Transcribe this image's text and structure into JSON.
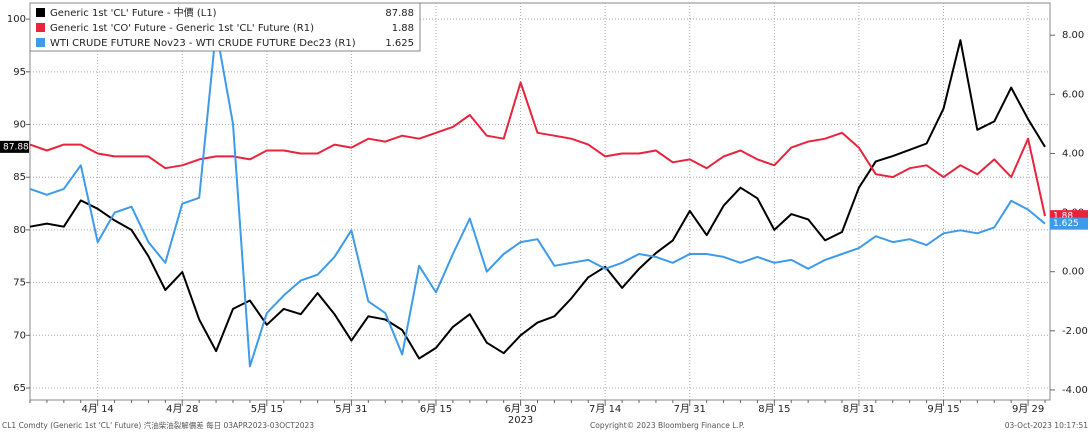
{
  "chart_data": {
    "type": "line",
    "categories": [
      null,
      null,
      null,
      null,
      "4月 14",
      null,
      null,
      null,
      null,
      "4月 28",
      null,
      null,
      null,
      null,
      "5月 15",
      null,
      null,
      null,
      null,
      "5月 31",
      null,
      null,
      null,
      null,
      "6月 15",
      null,
      null,
      null,
      null,
      "6月 30",
      null,
      null,
      null,
      null,
      "7月 14",
      null,
      null,
      null,
      null,
      "7月 31",
      null,
      null,
      null,
      null,
      "8月 15",
      null,
      null,
      null,
      null,
      "8月 31",
      null,
      null,
      null,
      null,
      "9月 15",
      null,
      null,
      null,
      null,
      "9月 29",
      null
    ],
    "x_year": "2023",
    "series": [
      {
        "name": "Generic 1st 'CL' Future - 中價 (L1)",
        "color": "#000000",
        "axis": "y",
        "last_value": 87.88,
        "values": [
          80.3,
          80.6,
          80.3,
          82.8,
          82.0,
          80.9,
          80.0,
          77.5,
          74.3,
          76.0,
          71.5,
          68.5,
          72.5,
          73.3,
          71.0,
          72.5,
          72.0,
          74.0,
          72.0,
          69.5,
          71.8,
          71.5,
          70.5,
          67.8,
          68.8,
          70.8,
          72.0,
          69.3,
          68.3,
          70.0,
          71.2,
          71.8,
          73.5,
          75.5,
          76.5,
          74.5,
          76.3,
          77.8,
          79.0,
          81.8,
          79.5,
          82.3,
          84.0,
          83.0,
          80.0,
          81.5,
          81.0,
          79.0,
          79.8,
          84.0,
          86.5,
          87.0,
          87.6,
          88.2,
          91.5,
          98.0,
          89.5,
          90.3,
          93.5,
          90.5,
          87.88
        ]
      },
      {
        "name": "Generic 1st 'CO' Future - Generic 1st 'CL' Future (R1)",
        "color": "#e8243c",
        "axis": "y2",
        "last_value": 1.88,
        "values": [
          4.3,
          4.1,
          4.3,
          4.3,
          4.0,
          3.9,
          3.9,
          3.9,
          3.5,
          3.6,
          3.8,
          3.9,
          3.9,
          3.8,
          4.1,
          4.1,
          4.0,
          4.0,
          4.3,
          4.2,
          4.5,
          4.4,
          4.6,
          4.5,
          4.7,
          4.9,
          5.3,
          4.6,
          4.5,
          6.4,
          4.7,
          4.6,
          4.5,
          4.3,
          3.9,
          4.0,
          4.0,
          4.1,
          3.7,
          3.8,
          3.5,
          3.9,
          4.1,
          3.8,
          3.6,
          4.2,
          4.4,
          4.5,
          4.7,
          4.2,
          3.3,
          3.2,
          3.5,
          3.6,
          3.2,
          3.6,
          3.3,
          3.8,
          3.2,
          4.5,
          1.88
        ]
      },
      {
        "name": "WTI CRUDE FUTURE Nov23 - WTI CRUDE FUTURE Dec23 (R1)",
        "color": "#3d9be9",
        "axis": "y2",
        "last_value": 1.625,
        "values": [
          2.8,
          2.6,
          2.8,
          3.6,
          1.0,
          2.0,
          2.2,
          1.0,
          0.3,
          2.3,
          2.5,
          8.2,
          5.0,
          -3.2,
          -1.4,
          -0.8,
          -0.3,
          -0.1,
          0.5,
          1.4,
          -1.0,
          -1.4,
          -2.8,
          0.2,
          -0.7,
          0.6,
          1.8,
          0.0,
          0.6,
          1.0,
          1.1,
          0.2,
          0.3,
          0.4,
          0.1,
          0.3,
          0.6,
          0.5,
          0.3,
          0.6,
          0.6,
          0.5,
          0.3,
          0.5,
          0.3,
          0.4,
          0.1,
          0.4,
          0.6,
          0.8,
          1.2,
          1.0,
          1.1,
          0.9,
          1.3,
          1.4,
          1.3,
          1.5,
          2.4,
          2.1,
          1.625
        ]
      }
    ],
    "ylim": [
      63.86,
      101.53
    ],
    "yticks": [
      65,
      70,
      75,
      80,
      85,
      90,
      95,
      100
    ],
    "y2lim": [
      -4.34,
      9.09
    ],
    "y2ticks": [
      {
        "value": -4,
        "label": "-4.00"
      },
      {
        "value": -2,
        "label": "-2.00"
      },
      {
        "value": 0,
        "label": "0.00"
      },
      {
        "value": 2,
        "label": "2.00"
      },
      {
        "value": 4,
        "label": "4.00"
      },
      {
        "value": 6,
        "label": "6.00"
      },
      {
        "value": 8,
        "label": "8.00"
      }
    ],
    "grid": true,
    "legend": "top-left",
    "footer": {
      "source": "CL1 Comdty (Generic 1st 'CL' Future) 汽油柴油裂解價差 每日 03APR2023-03OCT2023",
      "copyright": "Copyright© 2023 Bloomberg Finance L.P.",
      "timestamp": "03-Oct-2023 10:17:51"
    }
  }
}
